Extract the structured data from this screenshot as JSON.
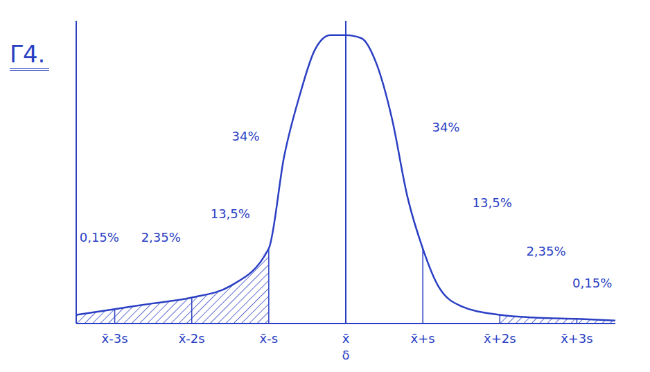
{
  "chart_data": {
    "type": "line",
    "title": "Γ4.",
    "x": [
      -3.5,
      -3,
      -2.5,
      -2,
      -1.5,
      -1,
      -0.8,
      -0.6,
      -0.4,
      -0.2,
      0,
      0.2,
      0.4,
      0.6,
      0.8,
      1,
      1.2,
      1.5,
      2,
      2.5,
      3,
      3.5
    ],
    "values": [
      0.03,
      0.05,
      0.07,
      0.09,
      0.13,
      0.26,
      0.58,
      0.79,
      0.95,
      1.0,
      1.0,
      0.99,
      0.9,
      0.71,
      0.44,
      0.26,
      0.13,
      0.06,
      0.03,
      0.02,
      0.016,
      0.01
    ],
    "color": "#2a3fc4",
    "xlim": [
      -3.5,
      3.5
    ],
    "xticks": [
      {
        "value": -3,
        "label": "x̄-3s"
      },
      {
        "value": -2,
        "label": "x̄-2s"
      },
      {
        "value": -1,
        "label": "x̄-s"
      },
      {
        "value": 0,
        "label": "x̄"
      },
      {
        "value": 1,
        "label": "x̄+s"
      },
      {
        "value": 2,
        "label": "x̄+2s"
      },
      {
        "value": 3,
        "label": "x̄+3s"
      }
    ],
    "ylim": [
      0,
      1.05
    ],
    "tick_labels": "x",
    "grid": false,
    "mean": 0,
    "mean_label": "δ",
    "bands": [
      {
        "from": -3.5,
        "to": -3,
        "value": 0.15,
        "label": "0,15%"
      },
      {
        "from": -3,
        "to": -2,
        "value": 2.35,
        "label": "2,35%"
      },
      {
        "from": -2,
        "to": -1,
        "value": 13.5,
        "label": "13,5%"
      },
      {
        "from": -1,
        "to": 0,
        "value": 34,
        "label": "34%"
      },
      {
        "from": 0,
        "to": 1,
        "value": 34,
        "label": "34%"
      },
      {
        "from": 1,
        "to": 2,
        "value": 13.5,
        "label": "13,5%"
      },
      {
        "from": 2,
        "to": 3,
        "value": 2.35,
        "label": "2,35%"
      },
      {
        "from": 3,
        "to": 3.5,
        "value": 0.15,
        "label": "0,15%"
      }
    ],
    "shaded": [
      {
        "from": -3.5,
        "to": -1
      },
      {
        "from": 2,
        "to": 3.5
      }
    ]
  }
}
